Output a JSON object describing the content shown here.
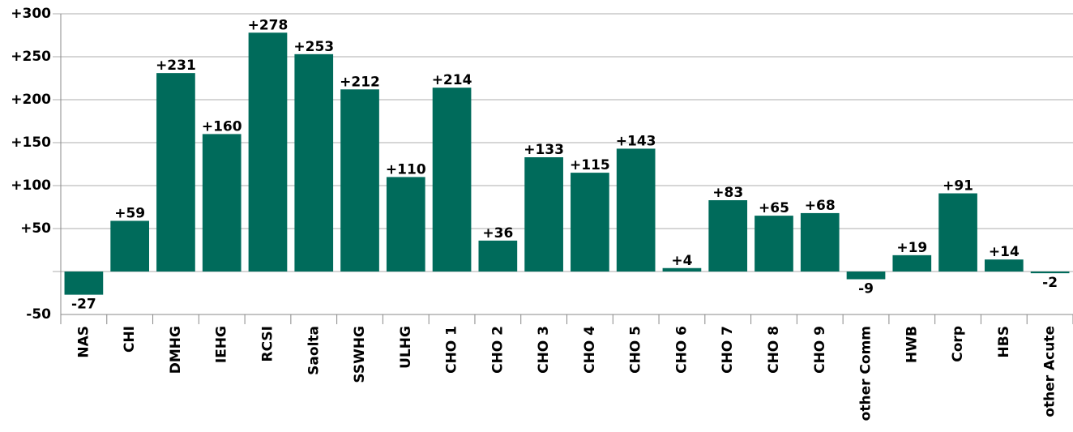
{
  "chart_data": {
    "type": "bar",
    "categories": [
      "NAS",
      "CHI",
      "DMHG",
      "IEHG",
      "RCSI",
      "Saolta",
      "SSWHG",
      "ULHG",
      "CHO 1",
      "CHO 2",
      "CHO 3",
      "CHO 4",
      "CHO 5",
      "CHO 6",
      "CHO 7",
      "CHO 8",
      "CHO 9",
      "other Comm",
      "HWB",
      "Corp",
      "HBS",
      "other Acute"
    ],
    "values": [
      -27,
      59,
      231,
      160,
      278,
      253,
      212,
      110,
      214,
      36,
      133,
      115,
      143,
      4,
      83,
      65,
      68,
      -9,
      19,
      91,
      14,
      -2
    ],
    "value_labels": [
      "-27",
      "+59",
      "+231",
      "+160",
      "+278",
      "+253",
      "+212",
      "+110",
      "+214",
      "+36",
      "+133",
      "+115",
      "+143",
      "+4",
      "+83",
      "+65",
      "+68",
      "-9",
      "+19",
      "+91",
      "+14",
      "-2"
    ],
    "color": "#006b5b",
    "ylim": [
      -50,
      300
    ],
    "yticks": [
      {
        "value": -50,
        "label": "-50"
      },
      {
        "value": 50,
        "label": "+50"
      },
      {
        "value": 100,
        "label": "+100"
      },
      {
        "value": 150,
        "label": "+150"
      },
      {
        "value": 200,
        "label": "+200"
      },
      {
        "value": 250,
        "label": "+250"
      },
      {
        "value": 300,
        "label": "+300"
      }
    ],
    "grid": true
  }
}
